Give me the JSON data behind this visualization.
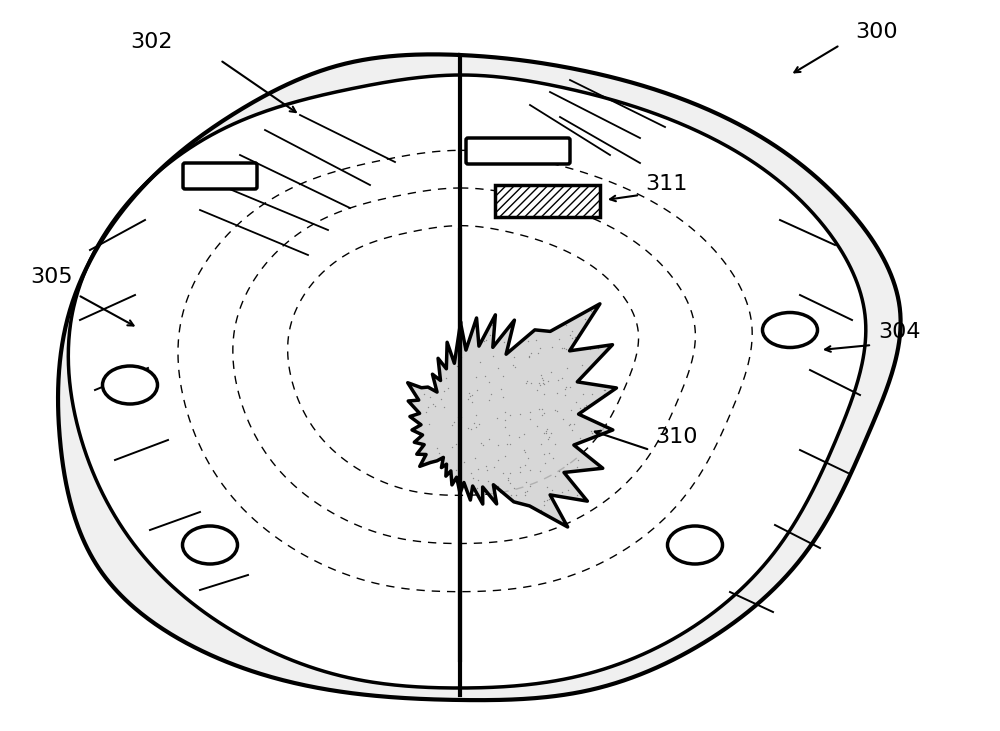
{
  "background_color": "#ffffff",
  "line_color": "#000000",
  "fill_light": "#d8d8d8",
  "fill_stipple": "#c8c8c8",
  "label_302": "302",
  "label_300": "300",
  "label_305": "305",
  "label_304": "304",
  "label_311": "311",
  "label_310": "310",
  "figsize": [
    10.0,
    7.31
  ],
  "dpi": 100
}
